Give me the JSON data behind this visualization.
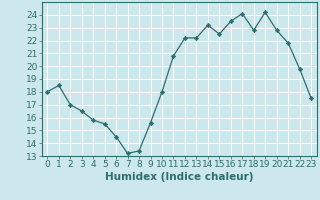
{
  "x": [
    0,
    1,
    2,
    3,
    4,
    5,
    6,
    7,
    8,
    9,
    10,
    11,
    12,
    13,
    14,
    15,
    16,
    17,
    18,
    19,
    20,
    21,
    22,
    23
  ],
  "y": [
    18,
    18.5,
    17,
    16.5,
    15.8,
    15.5,
    14.5,
    13.2,
    13.4,
    15.6,
    18,
    20.8,
    22.2,
    22.2,
    23.2,
    22.5,
    23.5,
    24.1,
    22.8,
    24.2,
    22.8,
    21.8,
    19.8,
    17.5
  ],
  "line_color": "#2d6e6e",
  "marker": "D",
  "marker_size": 2.2,
  "bg_color": "#cce8ec",
  "grid_color": "#ffffff",
  "grid_minor_color": "#ddeef0",
  "xlabel": "Humidex (Indice chaleur)",
  "xlim": [
    -0.5,
    23.5
  ],
  "ylim": [
    13,
    25
  ],
  "yticks": [
    13,
    14,
    15,
    16,
    17,
    18,
    19,
    20,
    21,
    22,
    23,
    24
  ],
  "xticks": [
    0,
    1,
    2,
    3,
    4,
    5,
    6,
    7,
    8,
    9,
    10,
    11,
    12,
    13,
    14,
    15,
    16,
    17,
    18,
    19,
    20,
    21,
    22,
    23
  ],
  "xlabel_fontsize": 7.5,
  "tick_fontsize": 6.5,
  "tick_color": "#2d6e6e",
  "spine_color": "#2d6e6e"
}
